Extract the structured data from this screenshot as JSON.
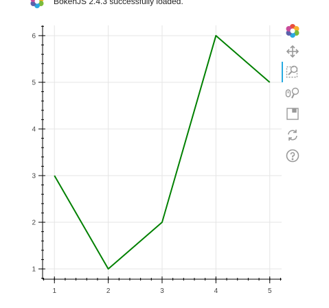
{
  "banner": {
    "text": "BokehJS 2.4.3 successfully loaded."
  },
  "toolbar": {
    "tools": [
      "bokeh-logo-icon",
      "pan-icon",
      "box-zoom-icon",
      "wheel-zoom-icon",
      "save-icon",
      "reset-icon",
      "help-icon"
    ],
    "active_tool": "pan-icon"
  },
  "chart_data": {
    "type": "line",
    "x": [
      1,
      2,
      3,
      4,
      5
    ],
    "series": [
      {
        "values": [
          3,
          1,
          2,
          6,
          5
        ],
        "color": "#008000"
      }
    ],
    "xlim": [
      0.78,
      5.22
    ],
    "ylim": [
      0.78,
      6.22
    ],
    "xticks": [
      1,
      2,
      3,
      4,
      5
    ],
    "yticks": [
      1,
      2,
      3,
      4,
      5,
      6
    ],
    "xtick_labels": [
      "1",
      "2",
      "3",
      "4",
      "5"
    ],
    "ytick_labels": [
      "1",
      "2",
      "3",
      "4",
      "5",
      "6"
    ],
    "grid": true,
    "title": "",
    "xlabel": "",
    "ylabel": ""
  }
}
